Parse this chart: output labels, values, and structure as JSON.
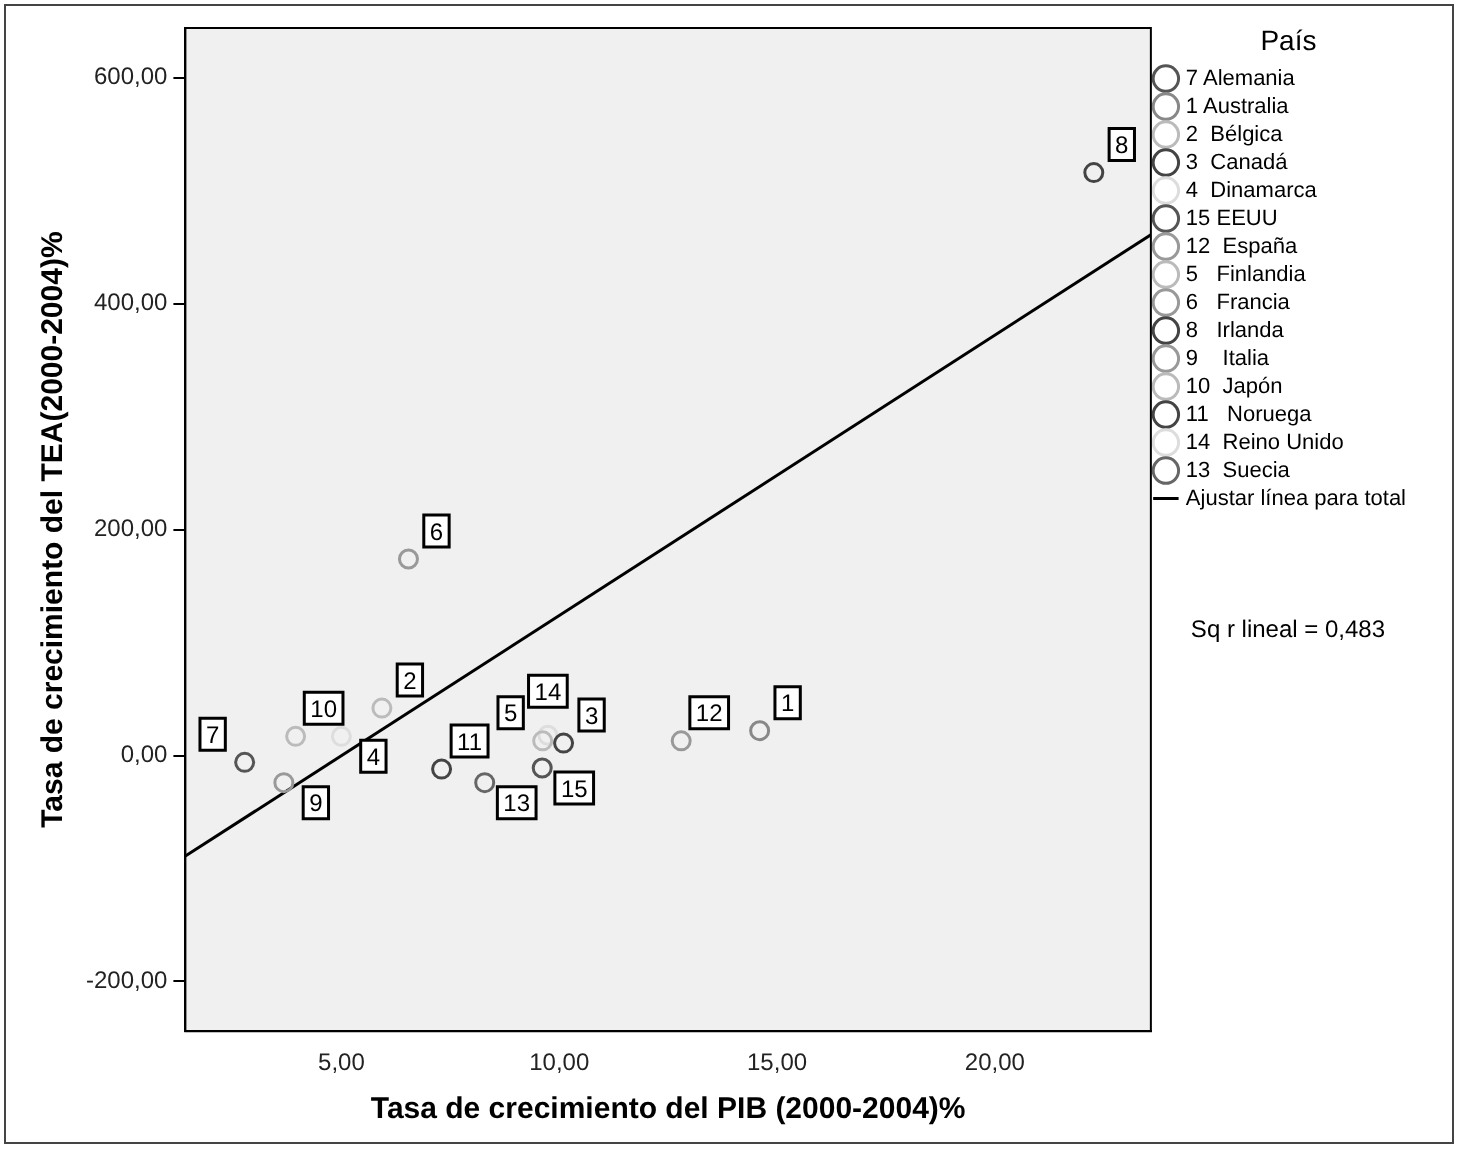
{
  "chart_data": {
    "type": "scatter",
    "xlabel": "Tasa de crecimiento del PIB (2000-2004)%",
    "ylabel": "Tasa de crecimiento del TEA(2000-2004)%",
    "legend_title": "País",
    "legend": "right",
    "grid": false,
    "marker": "circle",
    "xlim": [
      1.42,
      23.58
    ],
    "xticks": [
      {
        "value": 5,
        "label": "5,00"
      },
      {
        "value": 10,
        "label": "10,00"
      },
      {
        "value": 15,
        "label": "15,00"
      },
      {
        "value": 20,
        "label": "20,00"
      }
    ],
    "ylim": [
      -244,
      644
    ],
    "yticks": [
      {
        "value": -200,
        "label": "-200,00"
      },
      {
        "value": 0,
        "label": "0,00"
      },
      {
        "value": 200,
        "label": "200,00"
      },
      {
        "value": 400,
        "label": "400,00"
      },
      {
        "value": 600,
        "label": "600,00"
      }
    ],
    "series": [
      {
        "name": "7 Alemania",
        "color": "#555555",
        "x": [
          2.78
        ],
        "values": [
          -6
        ]
      },
      {
        "name": "1 Australia",
        "color": "#888888",
        "x": [
          14.6
        ],
        "values": [
          22
        ]
      },
      {
        "name": "2  Bélgica",
        "color": "#bbbbbb",
        "x": [
          5.93
        ],
        "values": [
          42
        ]
      },
      {
        "name": "3  Canadá",
        "color": "#444444",
        "x": [
          10.1
        ],
        "values": [
          11
        ]
      },
      {
        "name": "4  Dinamarca",
        "color": "#dddddd",
        "x": [
          5.0
        ],
        "values": [
          17
        ]
      },
      {
        "name": "15 EEUU",
        "color": "#555555",
        "x": [
          9.61
        ],
        "values": [
          -11
        ]
      },
      {
        "name": "12  España",
        "color": "#999999",
        "x": [
          12.8
        ],
        "values": [
          13
        ]
      },
      {
        "name": "5   Finlandia",
        "color": "#bbbbbb",
        "x": [
          9.62
        ],
        "values": [
          13
        ]
      },
      {
        "name": "6   Francia",
        "color": "#999999",
        "x": [
          6.54
        ],
        "values": [
          174
        ]
      },
      {
        "name": "8   Irlanda",
        "color": "#444444",
        "x": [
          22.27
        ],
        "values": [
          516
        ]
      },
      {
        "name": "9    Italia",
        "color": "#999999",
        "x": [
          3.68
        ],
        "values": [
          -24
        ]
      },
      {
        "name": "10  Japón",
        "color": "#bbbbbb",
        "x": [
          3.95
        ],
        "values": [
          17
        ]
      },
      {
        "name": "11   Noruega",
        "color": "#444444",
        "x": [
          7.3
        ],
        "values": [
          -12
        ]
      },
      {
        "name": "14  Reino Unido",
        "color": "#dddddd",
        "x": [
          9.74
        ],
        "values": [
          18
        ]
      },
      {
        "name": "13  Suecia",
        "color": "#666666",
        "x": [
          8.29
        ],
        "values": [
          -24
        ]
      },
      {
        "name": "Ajustar línea para total",
        "type": "line",
        "marker": "none",
        "color": "#000000",
        "x": [
          1.42,
          23.58
        ],
        "values": [
          -89,
          461
        ]
      }
    ],
    "annotations": [
      {
        "text": "7",
        "x": 2.78,
        "y": -6
      },
      {
        "text": "1",
        "x": 14.6,
        "y": 22
      },
      {
        "text": "2",
        "x": 5.93,
        "y": 42
      },
      {
        "text": "3",
        "x": 10.1,
        "y": 11
      },
      {
        "text": "4",
        "x": 5.0,
        "y": 17
      },
      {
        "text": "15",
        "x": 9.61,
        "y": -11
      },
      {
        "text": "12",
        "x": 12.8,
        "y": 13
      },
      {
        "text": "5",
        "x": 9.62,
        "y": 13
      },
      {
        "text": "6",
        "x": 6.54,
        "y": 174
      },
      {
        "text": "8",
        "x": 22.27,
        "y": 516
      },
      {
        "text": "9",
        "x": 3.68,
        "y": -24
      },
      {
        "text": "10",
        "x": 3.95,
        "y": 17
      },
      {
        "text": "11",
        "x": 7.3,
        "y": -12
      },
      {
        "text": "14",
        "x": 9.74,
        "y": 18
      },
      {
        "text": "13",
        "x": 8.29,
        "y": -24
      },
      "Sq r lineal = 0,483"
    ]
  }
}
